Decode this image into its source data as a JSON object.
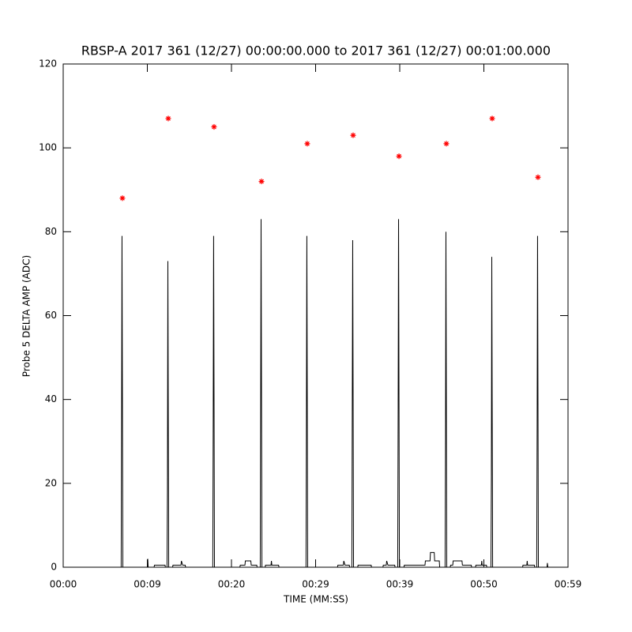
{
  "chart_data": {
    "type": "line",
    "title": "RBSP-A 2017 361 (12/27) 00:00:00.000 to 2017 361 (12/27) 00:01:00.000",
    "x_label": "TIME (MM:SS)",
    "y_label": "Probe 5 DELTA AMP (ADC)",
    "xlim": [
      0,
      60
    ],
    "ylim": [
      0,
      120
    ],
    "xticks": [
      {
        "value": 0,
        "label": "00:00"
      },
      {
        "value": 10,
        "label": "00:09"
      },
      {
        "value": 20,
        "label": "00:20"
      },
      {
        "value": 30,
        "label": "00:29"
      },
      {
        "value": 40,
        "label": "00:39"
      },
      {
        "value": 50,
        "label": "00:50"
      },
      {
        "value": 60,
        "label": "00:59"
      }
    ],
    "yticks": [
      0,
      20,
      40,
      60,
      80,
      100,
      120
    ],
    "series": [
      {
        "color": "#000000",
        "x": [
          0,
          6.89,
          6.94,
          6.99,
          7.09,
          10.0,
          10.05,
          10.1,
          10.8,
          10.85,
          12.1,
          12.15,
          12.34,
          12.39,
          12.44,
          12.54,
          13.0,
          13.05,
          14.0,
          14.05,
          14.2,
          14.5,
          14.55,
          17.78,
          17.83,
          17.88,
          17.98,
          21.0,
          21.05,
          21.6,
          21.65,
          22.3,
          22.35,
          23.0,
          23.05,
          23.42,
          23.47,
          23.52,
          23.62,
          24.0,
          24.05,
          24.7,
          24.75,
          24.8,
          25.6,
          25.65,
          28.86,
          28.91,
          28.96,
          29.06,
          32.6,
          32.65,
          33.3,
          33.35,
          33.5,
          34.0,
          34.05,
          34.31,
          34.36,
          34.41,
          34.51,
          35.0,
          35.05,
          36.6,
          36.65,
          38.0,
          38.05,
          38.4,
          38.45,
          38.6,
          39.4,
          39.45,
          39.76,
          39.81,
          39.86,
          39.96,
          40.5,
          40.55,
          43.0,
          43.05,
          43.6,
          43.65,
          44.1,
          44.15,
          44.7,
          44.75,
          45.39,
          45.44,
          45.49,
          45.59,
          46.0,
          46.05,
          46.3,
          46.35,
          47.4,
          47.45,
          48.5,
          48.55,
          49.0,
          49.05,
          49.7,
          49.75,
          49.8,
          50.3,
          50.35,
          50.84,
          50.89,
          50.94,
          51.04,
          54.6,
          54.65,
          55.1,
          55.15,
          55.2,
          56.0,
          56.05,
          56.28,
          56.33,
          56.38,
          56.48,
          57.5,
          57.55,
          57.6,
          60
        ],
        "values": [
          0,
          0,
          35,
          79,
          0,
          0,
          2,
          0,
          0,
          0.5,
          0.5,
          0,
          0,
          18,
          73,
          0,
          0,
          0.5,
          0.5,
          1.5,
          0.5,
          0.5,
          0,
          0,
          35,
          79,
          0,
          0,
          0.5,
          0.5,
          1.5,
          1.5,
          0.5,
          0.5,
          0,
          0,
          40,
          83,
          0,
          0,
          0.5,
          0.5,
          1.5,
          0.5,
          0.5,
          0,
          0,
          35,
          79,
          0,
          0,
          0.5,
          0.5,
          1.5,
          0.5,
          0.5,
          0,
          0,
          40,
          78,
          0,
          0,
          0.5,
          0.5,
          0,
          0,
          0.5,
          0.5,
          1.5,
          0.5,
          0.5,
          0,
          0,
          37,
          83,
          0,
          0,
          0.5,
          0.5,
          1.5,
          1.5,
          3.5,
          3.5,
          1.5,
          1.5,
          0,
          0,
          30,
          80,
          0,
          0,
          0.5,
          0.5,
          1.5,
          1.5,
          0.5,
          0.5,
          0,
          0,
          0.5,
          0.5,
          1.5,
          0.5,
          0.5,
          0,
          0,
          21,
          74,
          0,
          0,
          0.5,
          0.5,
          1.5,
          0.5,
          0.5,
          0,
          0,
          33,
          79,
          0,
          0,
          1,
          0,
          0
        ]
      },
      {
        "color": "#ff0000",
        "marker": "asterisk",
        "x": [
          7.04,
          12.49,
          17.93,
          23.57,
          29.01,
          34.46,
          39.91,
          45.54,
          50.99,
          56.43
        ],
        "values": [
          88,
          107,
          105,
          92,
          101,
          103,
          98,
          101,
          107,
          93
        ]
      }
    ]
  }
}
